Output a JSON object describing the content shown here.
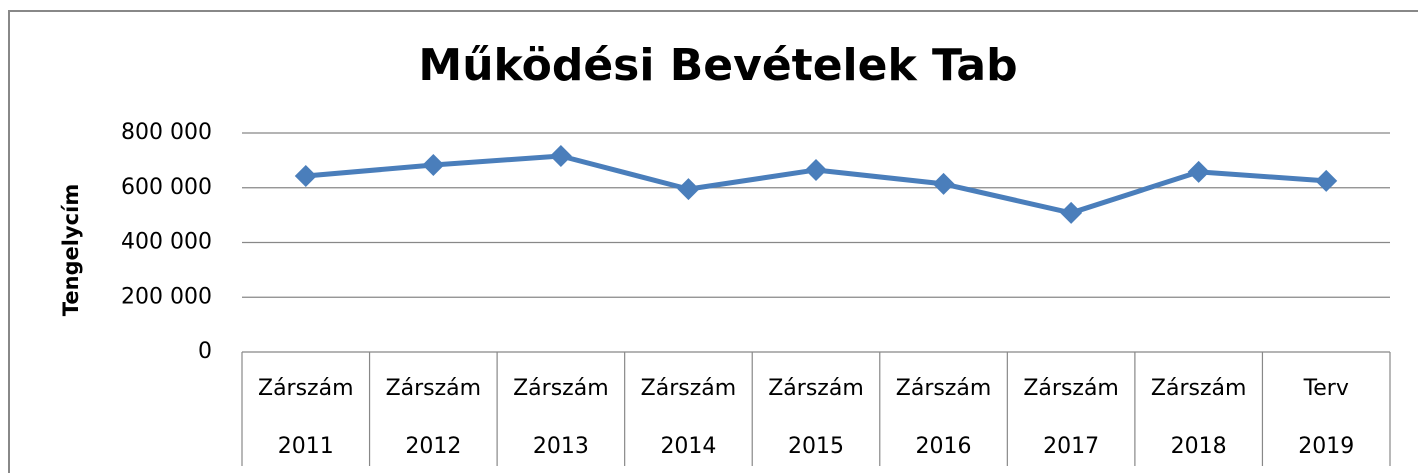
{
  "chart_data": {
    "type": "line",
    "title": "Működési Bevételek Tab",
    "y_label": "Tengelycím",
    "categories": [
      [
        "Zárszám",
        "2011"
      ],
      [
        "Zárszám",
        "2012"
      ],
      [
        "Zárszám",
        "2013"
      ],
      [
        "Zárszám",
        "2014"
      ],
      [
        "Zárszám",
        "2015"
      ],
      [
        "Zárszám",
        "2016"
      ],
      [
        "Zárszám",
        "2017"
      ],
      [
        "Zárszám",
        "2018"
      ],
      [
        "Terv",
        "2019"
      ]
    ],
    "series": [
      {
        "name": "Működési Bevételek Tab",
        "color": "#4a7ebb",
        "values": [
          643000,
          683000,
          716000,
          595000,
          665000,
          614000,
          508000,
          658000,
          625000
        ]
      }
    ],
    "ylim": [
      0,
      800000
    ],
    "yticks": [
      0,
      {
        "value": 200000,
        "label": "200 000"
      },
      {
        "value": 400000,
        "label": "400 000"
      },
      {
        "value": 600000,
        "label": "600 000"
      },
      {
        "value": 800000,
        "label": "800 000"
      }
    ],
    "grid": true,
    "legend": false
  }
}
